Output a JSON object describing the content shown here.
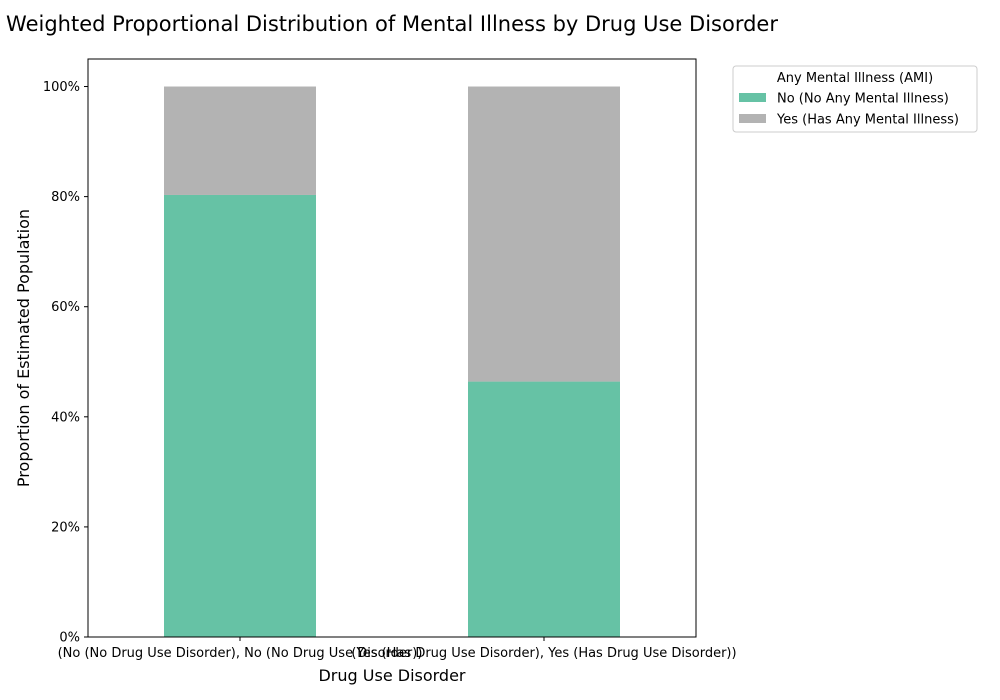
{
  "chart_data": {
    "type": "bar",
    "stacked": true,
    "title": "Weighted Proportional Distribution of Mental Illness by Drug Use Disorder",
    "xlabel": "Drug Use Disorder",
    "ylabel": "Proportion of Estimated Population",
    "categories": [
      "(No (No Drug Use Disorder), No (No Drug Use Disorder))",
      "(Yes (Has Drug Use Disorder), Yes (Has Drug Use Disorder))"
    ],
    "series": [
      {
        "name": "No (No Any Mental Illness)",
        "color": "#66c2a5",
        "values": [
          0.803,
          0.464
        ]
      },
      {
        "name": "Yes (Has Any Mental Illness)",
        "color": "#b3b3b3",
        "values": [
          0.197,
          0.536
        ]
      }
    ],
    "ylim": [
      0,
      1.05
    ],
    "yticks": [
      0,
      0.2,
      0.4,
      0.6,
      0.8,
      1.0
    ],
    "ytick_labels": [
      "0%",
      "20%",
      "40%",
      "60%",
      "80%",
      "100%"
    ],
    "legend": {
      "title": "Any Mental Illness (AMI)",
      "placement": "outside-top-right"
    },
    "grid": false
  }
}
